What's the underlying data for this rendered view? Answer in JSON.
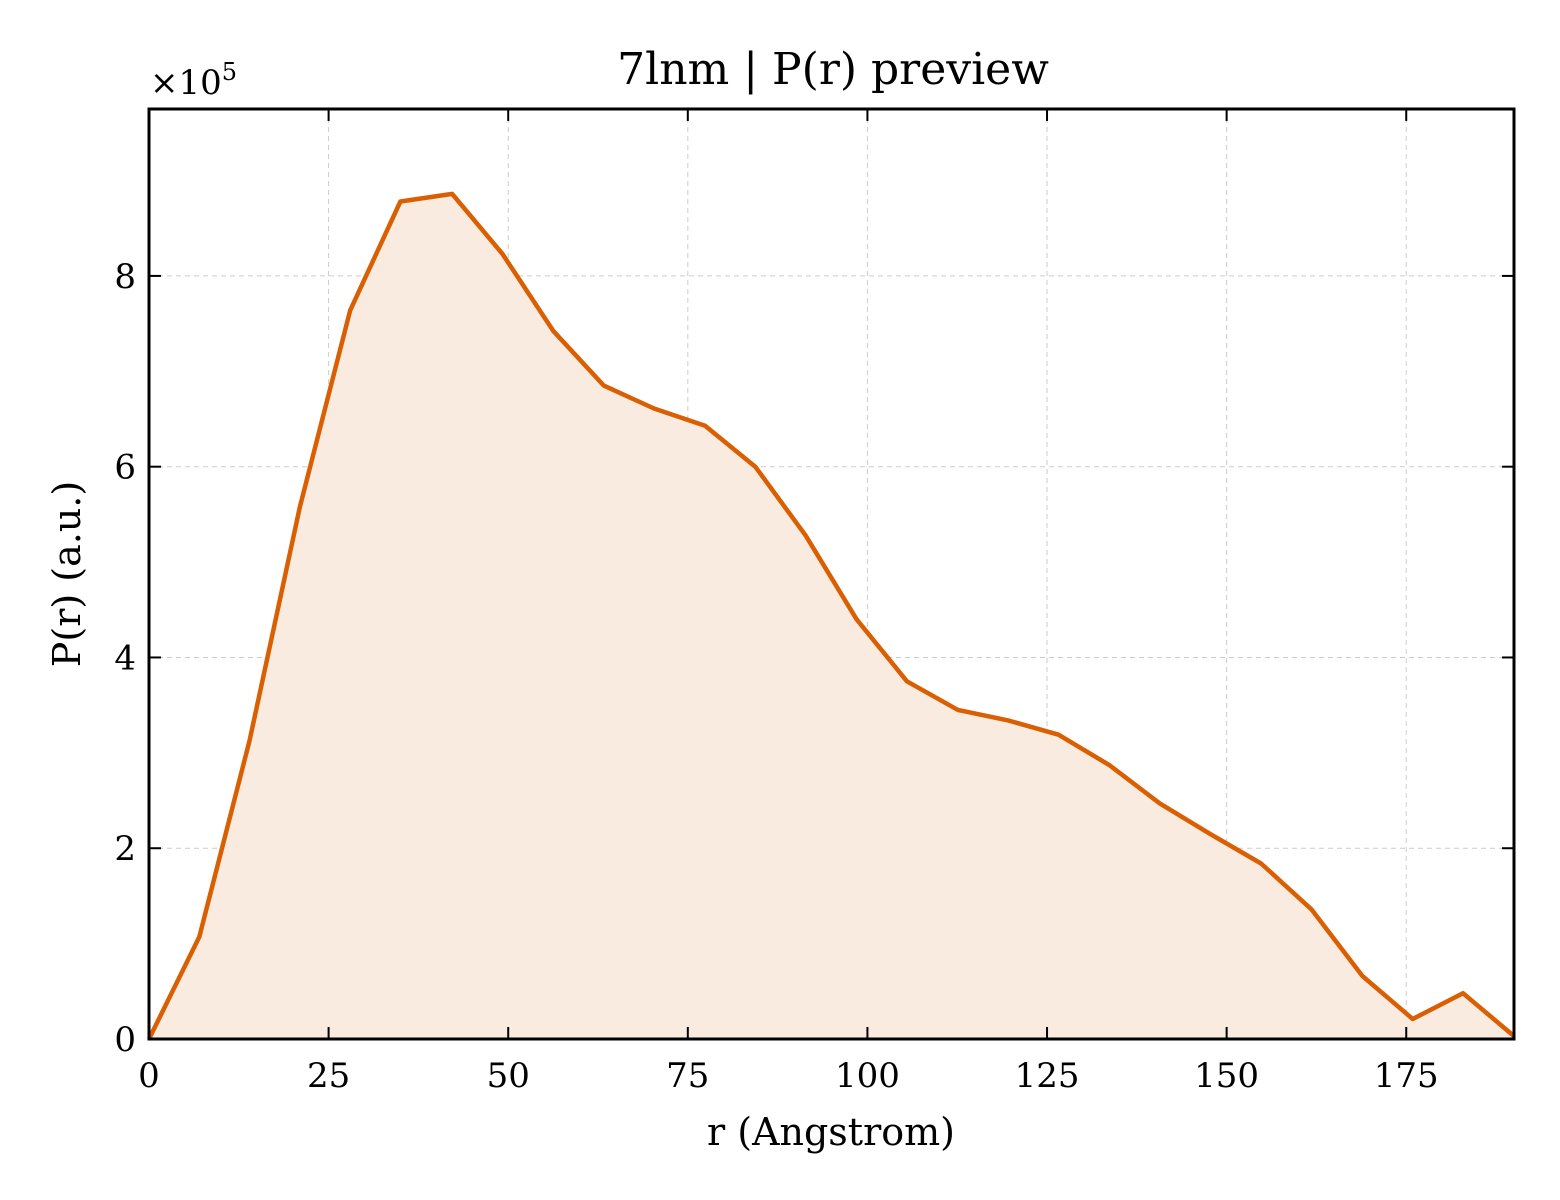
{
  "chart_data": {
    "type": "area",
    "title": "7lnm | P(r) preview",
    "xlabel": "r (Angstrom)",
    "ylabel": "P(r) (a.u.)",
    "y_multiplier_label": "×10",
    "y_multiplier_exponent": "5",
    "y_scale_factor": 100000,
    "xlim": [
      0,
      190
    ],
    "ylim": [
      0,
      9.75
    ],
    "xticks": [
      0,
      25,
      50,
      75,
      100,
      125,
      150,
      175
    ],
    "yticks": [
      0,
      2,
      4,
      6,
      8
    ],
    "grid": true,
    "line_color": "#d95f02",
    "fill_color": "#f9ebe0",
    "series": [
      {
        "x": [
          0,
          7,
          14,
          21,
          28,
          35,
          42.2,
          49.2,
          56.3,
          63.3,
          70.3,
          77.4,
          84.4,
          91.4,
          98.5,
          105.5,
          112.6,
          119.6,
          126.6,
          133.7,
          140.7,
          147.7,
          154.8,
          161.8,
          168.9,
          175.9,
          182.9,
          190
        ],
        "y": [
          0,
          1.07,
          3.13,
          5.58,
          7.64,
          8.78,
          8.86,
          8.23,
          7.42,
          6.85,
          6.61,
          6.43,
          6.0,
          5.28,
          4.4,
          3.75,
          3.45,
          3.34,
          3.19,
          2.87,
          2.47,
          2.15,
          1.84,
          1.36,
          0.66,
          0.21,
          0.48,
          0.03
        ]
      }
    ]
  }
}
